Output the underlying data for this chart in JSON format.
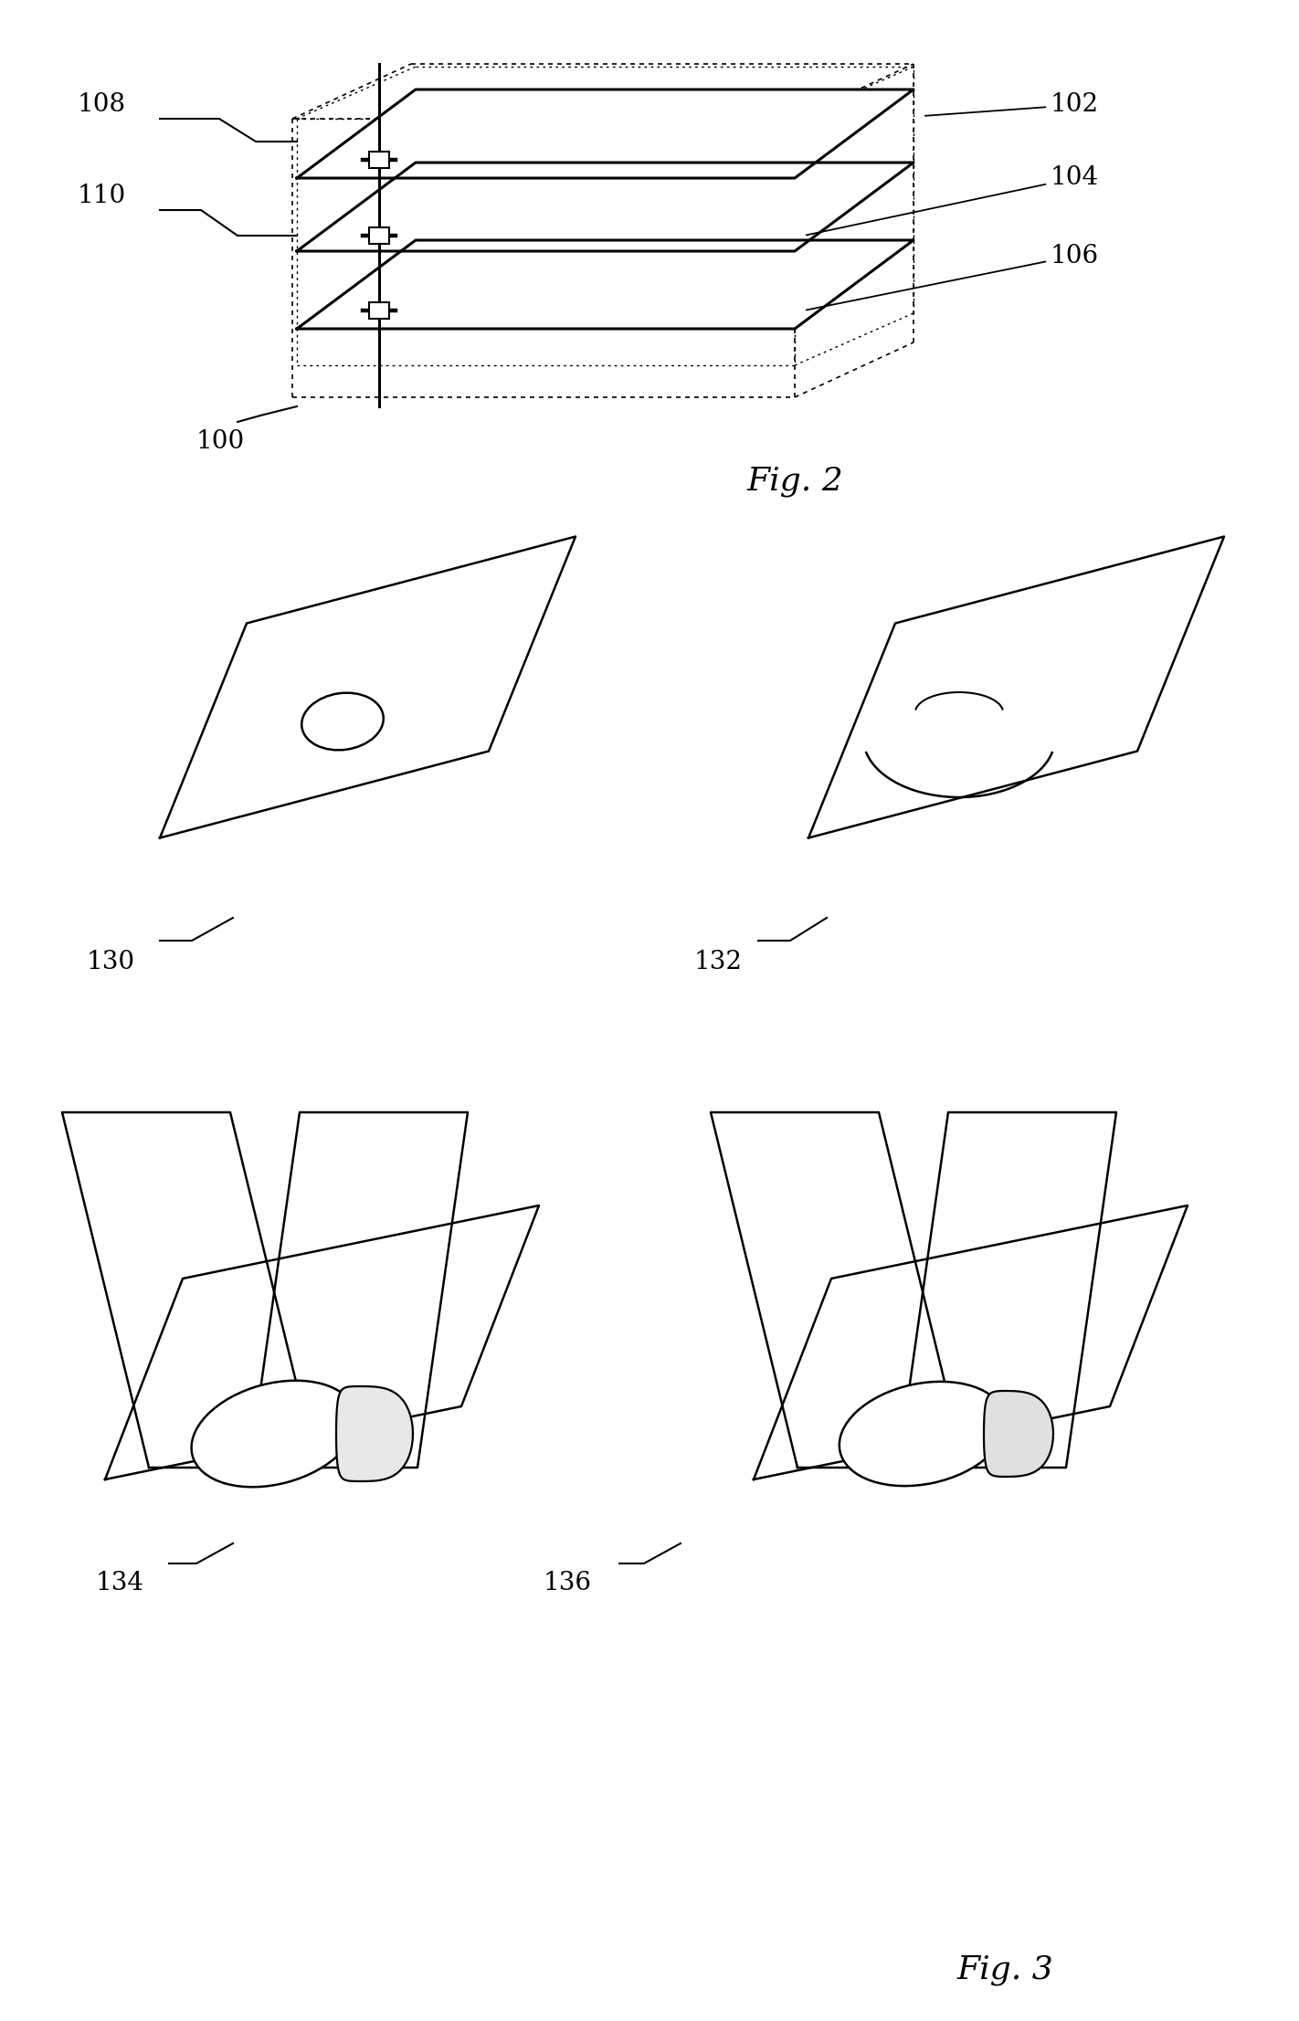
{
  "fig_width": 14.22,
  "fig_height": 22.13,
  "bg_color": "#ffffff",
  "line_color": "#000000",
  "lw_thick": 2.2,
  "lw_med": 1.8,
  "lw_thin": 1.2,
  "label_fontsize": 20,
  "fig_label_fontsize": 26
}
